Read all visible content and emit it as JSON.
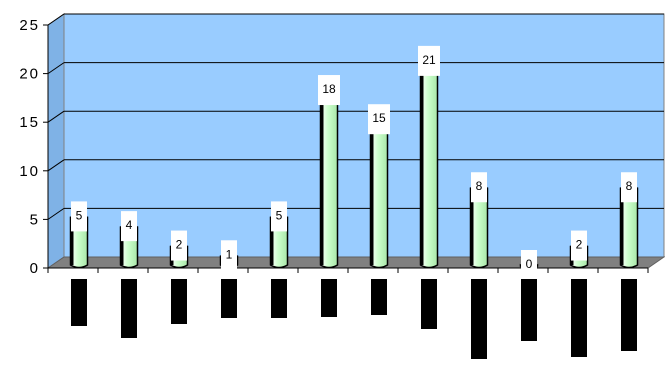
{
  "chart_data": {
    "type": "bar",
    "categories": [
      "",
      "",
      "",
      "",
      "",
      "",
      "",
      "",
      "",
      "",
      "",
      ""
    ],
    "values": [
      5,
      4,
      2,
      1,
      5,
      18,
      15,
      21,
      8,
      0,
      2,
      8
    ],
    "data_labels": [
      "5",
      "4",
      "2",
      "1",
      "5",
      "18",
      "15",
      "21",
      "8",
      "0",
      "2",
      "8"
    ],
    "y_ticks": [
      "0",
      "5",
      "10",
      "15",
      "20",
      "25"
    ],
    "ylim": [
      0,
      25
    ],
    "grid": true,
    "style": "3d-cylinder",
    "colors": {
      "plot_background": "#99ccff",
      "floor": "#808080",
      "bar_fill": "#ccffcc",
      "bar_outline": "#000000",
      "grid_line": "#000000",
      "label_box": "#ffffff"
    }
  }
}
